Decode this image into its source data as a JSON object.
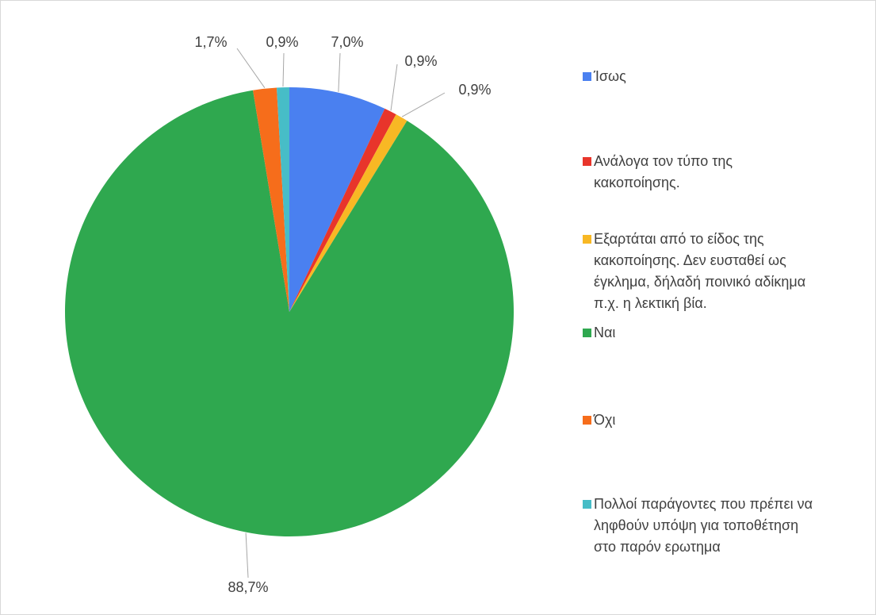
{
  "chart_data": {
    "type": "pie",
    "categories": [
      "Ίσως",
      "Ανάλογα τον τύπο της κακοποίησης.",
      "Εξαρτάται από το είδος της κακοποίησης. Δεν ευσταθεί ως έγκλημα, δήλαδή ποινικό αδίκημα π.χ. η λεκτική βία.",
      "Ναι",
      "Όχι",
      "Πολλοί παράγοντες που πρέπει να ληφθούν υπόψη για τοποθέτηση στο παρόν ερωτημα"
    ],
    "values": [
      7.0,
      0.9,
      0.9,
      88.7,
      1.7,
      0.9
    ],
    "value_labels": [
      "7,0%",
      "0,9%",
      "0,9%",
      "88,7%",
      "1,7%",
      "0,9%"
    ],
    "colors": [
      "#4a80f0",
      "#e8352b",
      "#f8b824",
      "#2fa84f",
      "#f66d1b",
      "#47bdc7"
    ],
    "legend": "right"
  }
}
